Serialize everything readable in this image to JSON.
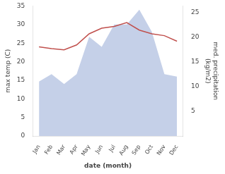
{
  "chart_data": {
    "type": "line",
    "categories": [
      "Jan",
      "Feb",
      "Mar",
      "Apr",
      "May",
      "Jun",
      "Jul",
      "Aug",
      "Sep",
      "Oct",
      "Nov",
      "Dec"
    ],
    "series": [
      {
        "type": "area",
        "color": "#c5d0e8",
        "axis": "y2",
        "values": [
          11.0,
          12.5,
          10.5,
          12.5,
          20.0,
          18.0,
          22.5,
          22.5,
          25.5,
          21.0,
          12.5,
          12.0
        ]
      },
      {
        "type": "line",
        "color": "#c0504d",
        "values": [
          24.0,
          23.5,
          23.2,
          24.5,
          27.5,
          29.0,
          29.5,
          30.5,
          28.5,
          27.5,
          27.0,
          25.5
        ]
      }
    ],
    "xlabel": "date (month)",
    "ylabel": "max temp (C)",
    "y2label": "med. precipitation\n(kg/m2)",
    "ylim": [
      0,
      35
    ],
    "yticks": [
      0,
      5,
      10,
      15,
      20,
      25,
      30,
      35
    ],
    "y2lim": [
      0,
      26.25
    ],
    "y2ticks": [
      5,
      10,
      15,
      20,
      25
    ],
    "grid": false
  }
}
